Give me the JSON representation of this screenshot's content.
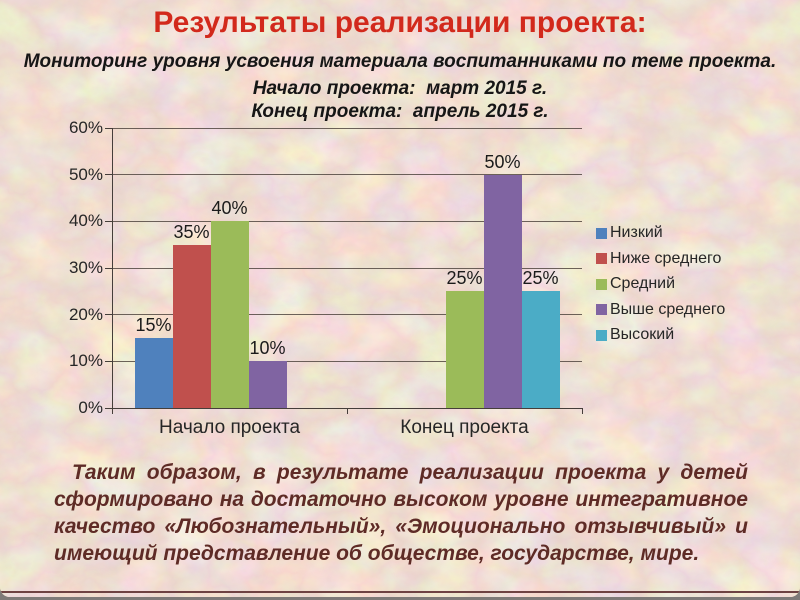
{
  "slide": {
    "title": "Результаты реализации проекта:",
    "subtitle": "Мониторинг уровня усвоения материала воспитанниками по теме проекта.",
    "period_start": "Начало проекта:  март 2015 г.",
    "period_end": "Конец проекта:  апрель 2015 г.",
    "conclusion": "Таким образом, в результате реализации проекта у детей сформировано на достаточно высоком уровне интегративное качество «Любознательный», «Эмоционально отзывчивый» и имеющий представление об обществе, государстве, мире.",
    "colors": {
      "title_red": "#d2291c",
      "body_text": "#161616",
      "conclusion_maroon": "#5e2b26",
      "accent_line_maroon": "#6e4242",
      "background_base": "#e9cfb6"
    }
  },
  "chart_data": {
    "type": "bar",
    "title": "",
    "categories": [
      "Начало проекта",
      "Конец проекта"
    ],
    "series": [
      {
        "name": "Низкий",
        "color": "#4F81BD",
        "values": [
          15,
          0
        ]
      },
      {
        "name": "Ниже среднего",
        "color": "#C0504D",
        "values": [
          35,
          0
        ]
      },
      {
        "name": "Средний",
        "color": "#9BBB59",
        "values": [
          40,
          25
        ]
      },
      {
        "name": "Выше среднего",
        "color": "#8064A2",
        "values": [
          10,
          50
        ]
      },
      {
        "name": "Высокий",
        "color": "#4BACC6",
        "values": [
          0,
          25
        ]
      }
    ],
    "xlabel": "",
    "ylabel": "",
    "ylim": [
      0,
      60
    ],
    "ytick_step": 10,
    "ytick_format": "percent",
    "grid": true,
    "legend_position": "right",
    "data_labels": true
  }
}
